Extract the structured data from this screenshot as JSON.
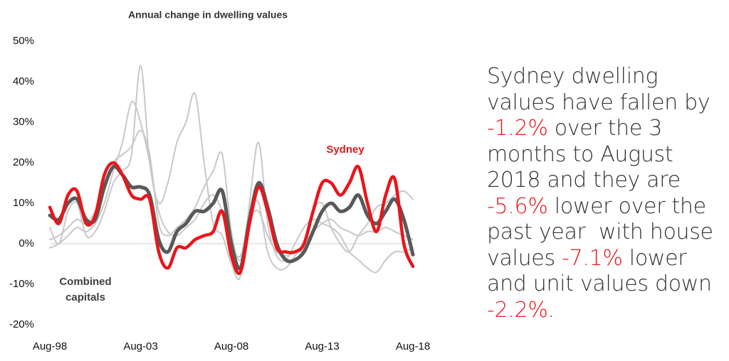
{
  "chart_data": {
    "type": "line",
    "title": "Annual change in dwelling values",
    "categories": [
      "Aug-98",
      null,
      null,
      null,
      null,
      null,
      null,
      null,
      null,
      null,
      "Aug-03",
      null,
      null,
      null,
      null,
      null,
      null,
      null,
      null,
      null,
      "Aug-08",
      null,
      null,
      null,
      null,
      null,
      null,
      null,
      null,
      null,
      "Aug-13",
      null,
      null,
      null,
      null,
      null,
      null,
      null,
      null,
      null,
      "Aug-18"
    ],
    "ylim": [
      -20,
      50
    ],
    "yticks": [
      {
        "value": -20,
        "label": "-20%"
      },
      {
        "value": -10,
        "label": "-10%"
      },
      {
        "value": 0,
        "label": "0%"
      },
      {
        "value": 10,
        "label": "10%"
      },
      {
        "value": 20,
        "label": "20%"
      },
      {
        "value": 30,
        "label": "30%"
      },
      {
        "value": 40,
        "label": "40%"
      },
      {
        "value": 50,
        "label": "50%"
      }
    ],
    "grid": false,
    "series": [
      {
        "color": "#c8c8c8",
        "values": [
          4,
          0,
          8,
          10,
          2,
          3,
          8,
          15,
          18,
          22,
          44,
          20,
          10,
          15,
          25,
          30,
          37,
          20,
          5,
          2,
          -5,
          -8,
          10,
          25,
          5,
          -3,
          -4,
          0,
          4,
          6,
          5,
          4,
          2,
          -2,
          -4,
          -6,
          -7,
          -4,
          -2,
          -2,
          -1
        ]
      },
      {
        "color": "#c8c8c8",
        "values": [
          1,
          2,
          4,
          6,
          5,
          8,
          13,
          20,
          22,
          24,
          28,
          22,
          5,
          2,
          4,
          6,
          9,
          14,
          18,
          22,
          3,
          -4,
          8,
          10,
          -2,
          -6,
          -6,
          -3,
          0,
          3,
          5,
          6,
          4,
          3,
          2,
          3,
          3,
          4,
          3,
          2,
          1
        ]
      },
      {
        "color": "#c8c8c8",
        "values": [
          -1,
          0,
          2,
          4,
          3,
          5,
          10,
          18,
          25,
          35,
          30,
          20,
          8,
          3,
          2,
          4,
          6,
          10,
          12,
          8,
          0,
          -3,
          6,
          8,
          2,
          -2,
          -3,
          -2,
          -1,
          8,
          10,
          4,
          0,
          -2,
          2,
          5,
          9,
          10,
          12,
          13,
          11
        ]
      },
      {
        "name": "Combined capitals",
        "color": "#595959",
        "values": [
          7,
          6,
          10,
          11,
          6,
          6,
          14,
          19,
          17,
          14,
          14,
          12,
          1,
          -2,
          3,
          5,
          8,
          8,
          10,
          13,
          0,
          -6,
          6,
          15,
          9,
          0,
          -4,
          -4,
          -2,
          3,
          8,
          10,
          8,
          9,
          12,
          7,
          5,
          8,
          11,
          6,
          -2.7
        ]
      },
      {
        "name": "Sydney",
        "color": "#e8161b",
        "values": [
          9,
          5,
          12,
          13,
          5,
          7,
          17,
          20,
          17,
          12,
          11,
          11,
          -2,
          -6,
          -1,
          -1,
          1,
          2,
          3,
          8,
          -3,
          -7,
          5,
          14,
          8,
          -1,
          -2,
          -2,
          0,
          8,
          15,
          15,
          12,
          15,
          19,
          10,
          3,
          12,
          16,
          0,
          -5.6
        ]
      }
    ]
  },
  "callout": [
    {
      "text": "Sydney dwelling values have fallen by ",
      "color": "#333333"
    },
    {
      "text": "-1.2%",
      "color": "#e8161b"
    },
    {
      "text": " over the 3 months to August 2018 and they are ",
      "color": "#333333"
    },
    {
      "text": "-5.6%",
      "color": "#e8161b"
    },
    {
      "text": " lower over the past year  with house values ",
      "color": "#333333"
    },
    {
      "text": "-7.1%",
      "color": "#e8161b"
    },
    {
      "text": " lower and unit values down ",
      "color": "#333333"
    },
    {
      "text": "-2.2%",
      "color": "#e8161b"
    },
    {
      "text": ".",
      "color": "#333333"
    }
  ]
}
